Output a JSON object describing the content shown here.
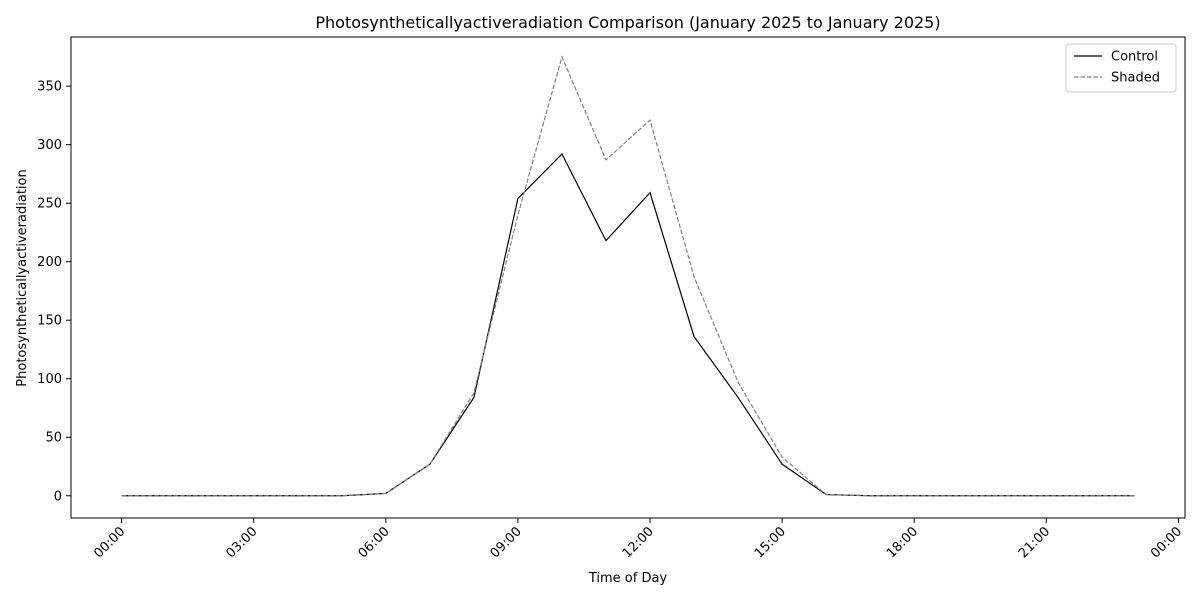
{
  "chart_data": {
    "type": "line",
    "title": "Photosyntheticallyactiveradiation Comparison (January 2025 to January 2025)",
    "xlabel": "Time of Day",
    "ylabel": "Photosyntheticallyactiveradiation",
    "x_tick_labels": [
      "00:00",
      "03:00",
      "06:00",
      "09:00",
      "12:00",
      "15:00",
      "18:00",
      "21:00",
      "00:00"
    ],
    "x_ticks_hours": [
      0,
      3,
      6,
      9,
      12,
      15,
      18,
      21,
      24
    ],
    "y_ticks": [
      0,
      50,
      100,
      150,
      200,
      250,
      300,
      350
    ],
    "xlim": [
      -1.15,
      24.15
    ],
    "ylim": [
      -19,
      392
    ],
    "grid": false,
    "legend_position": "top-right",
    "x_hours": [
      0,
      1,
      2,
      3,
      4,
      5,
      6,
      7,
      8,
      9,
      10,
      11,
      12,
      13,
      14,
      15,
      16,
      17,
      18,
      19,
      20,
      21,
      22,
      23
    ],
    "series": [
      {
        "name": "Control",
        "color": "#000000",
        "dash": "solid",
        "values": [
          0,
          0,
          0,
          0,
          0,
          0,
          2,
          27,
          84,
          254,
          292,
          218,
          259,
          136,
          84,
          27,
          1,
          0,
          0,
          0,
          0,
          0,
          0,
          0
        ]
      },
      {
        "name": "Shaded",
        "color": "#808080",
        "dash": "dashed",
        "values": [
          0,
          0,
          0,
          0,
          0,
          0,
          2,
          27,
          88,
          240,
          375,
          287,
          321,
          187,
          97,
          33,
          1,
          0,
          0,
          0,
          0,
          0,
          0,
          0
        ]
      }
    ]
  }
}
